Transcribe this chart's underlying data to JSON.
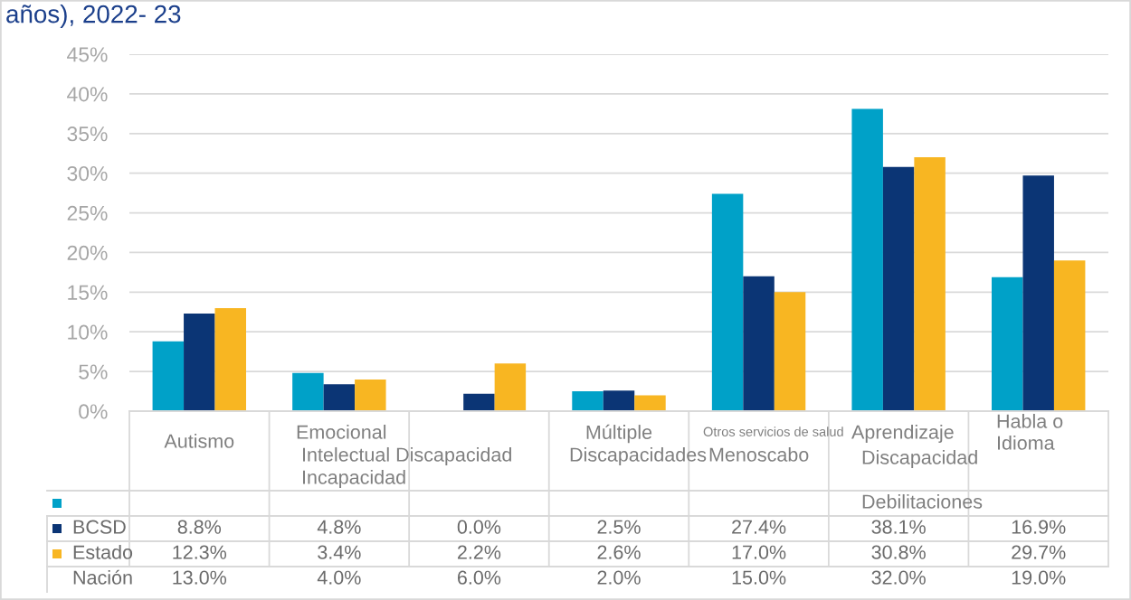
{
  "chart_data": {
    "type": "bar",
    "title": "años), 2022- 23",
    "categories": [
      "Autismo",
      "Emocional\nIntelectual Discapacidad\nIncapacidad",
      null,
      "Múltiple\nDiscapacidades",
      "Otros servicios de salud\nMenoscabo",
      "Aprendizaje\nDiscapacidad\nDebilitaciones",
      "Habla o\nIdioma"
    ],
    "series": [
      {
        "name": "BCSD",
        "color": "#00a1c8",
        "values": [
          8.8,
          4.8,
          0.0,
          2.5,
          27.4,
          38.1,
          16.9
        ],
        "value_labels": [
          "8.8%",
          "4.8%",
          "0.0%",
          "2.5%",
          "27.4%",
          "38.1%",
          "16.9%"
        ]
      },
      {
        "name": "Estado",
        "color": "#0b3575",
        "values": [
          12.3,
          3.4,
          2.2,
          2.6,
          17.0,
          30.8,
          29.7
        ],
        "value_labels": [
          "12.3%",
          "3.4%",
          "2.2%",
          "2.6%",
          "17.0%",
          "30.8%",
          "29.7%"
        ]
      },
      {
        "name": "Nación",
        "color": "#f8b622",
        "values": [
          13.0,
          4.0,
          6.0,
          2.0,
          15.0,
          32.0,
          19.0
        ],
        "value_labels": [
          "13.0%",
          "4.0%",
          "6.0%",
          "2.0%",
          "15.0%",
          "32.0%",
          "19.0%"
        ]
      }
    ],
    "ylim": [
      0,
      45
    ],
    "yticks": [
      {
        "value": 0,
        "label": "0%"
      },
      {
        "value": 5,
        "label": "5%"
      },
      {
        "value": 10,
        "label": "10%"
      },
      {
        "value": 15,
        "label": "15%"
      },
      {
        "value": 20,
        "label": "20%"
      },
      {
        "value": 25,
        "label": "25%"
      },
      {
        "value": 30,
        "label": "30%"
      },
      {
        "value": 35,
        "label": "35%"
      },
      {
        "value": 40,
        "label": "40%"
      },
      {
        "value": 45,
        "label": "45%"
      }
    ],
    "grid": "y",
    "legend": "bottom"
  }
}
